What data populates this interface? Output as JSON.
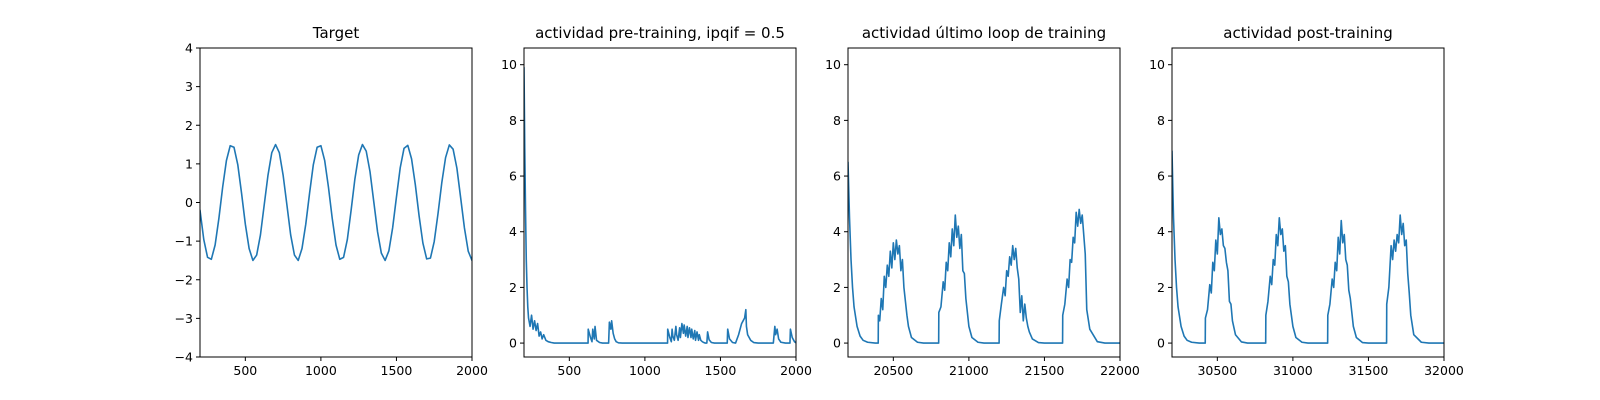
{
  "chart_data": [
    {
      "type": "line",
      "title": "Target",
      "xlabel": "",
      "ylabel": "",
      "xlim": [
        200,
        2000
      ],
      "ylim": [
        -4,
        4
      ],
      "xticks": [
        500,
        1000,
        1500,
        2000
      ],
      "yticks": [
        -4,
        -3,
        -2,
        -1,
        0,
        1,
        2,
        3,
        4
      ],
      "grid": false,
      "line_color": "#1f77b4",
      "series": [
        {
          "x": [
            200,
            225,
            250,
            275,
            300,
            325,
            350,
            375,
            400,
            425,
            450,
            475,
            500,
            525,
            550,
            575,
            600,
            625,
            650,
            675,
            700,
            725,
            750,
            775,
            800,
            825,
            850,
            875,
            900,
            925,
            950,
            975,
            1000,
            1025,
            1050,
            1075,
            1100,
            1125,
            1150,
            1175,
            1200,
            1225,
            1250,
            1275,
            1300,
            1325,
            1350,
            1375,
            1400,
            1425,
            1450,
            1475,
            1500,
            1525,
            1550,
            1575,
            1600,
            1625,
            1650,
            1675,
            1700,
            1725,
            1750,
            1775,
            1800,
            1825,
            1850,
            1875,
            1900,
            1925,
            1950,
            1975,
            2000
          ],
          "y": [
            -0.2,
            -0.96,
            -1.42,
            -1.47,
            -1.1,
            -0.41,
            0.4,
            1.09,
            1.47,
            1.43,
            0.98,
            0.24,
            -0.56,
            -1.19,
            -1.5,
            -1.36,
            -0.84,
            -0.06,
            0.71,
            1.29,
            1.5,
            1.29,
            0.71,
            -0.06,
            -0.84,
            -1.36,
            -1.5,
            -1.19,
            -0.56,
            0.24,
            0.98,
            1.43,
            1.47,
            1.09,
            0.4,
            -0.41,
            -1.1,
            -1.47,
            -1.42,
            -0.96,
            -0.2,
            0.61,
            1.23,
            1.5,
            1.33,
            0.8,
            0.02,
            -0.76,
            -1.31,
            -1.5,
            -1.25,
            -0.65,
            0.14,
            0.9,
            1.4,
            1.48,
            1.13,
            0.46,
            -0.35,
            -1.05,
            -1.46,
            -1.44,
            -1.01,
            -0.29,
            0.51,
            1.16,
            1.49,
            1.38,
            0.89,
            0.12,
            -0.66,
            -1.26,
            -1.5
          ]
        }
      ]
    },
    {
      "type": "line",
      "title": "actividad pre-training, ipqif = 0.5",
      "xlabel": "",
      "ylabel": "",
      "xlim": [
        200,
        2000
      ],
      "ylim": [
        -0.5,
        10.6
      ],
      "xticks": [
        500,
        1000,
        1500,
        2000
      ],
      "yticks": [
        0,
        2,
        4,
        6,
        8,
        10
      ],
      "grid": false,
      "line_color": "#1f77b4",
      "series": [
        {
          "x": [
            200,
            205,
            210,
            215,
            220,
            225,
            230,
            240,
            250,
            260,
            270,
            280,
            290,
            300,
            310,
            320,
            330,
            345,
            360,
            380,
            400,
            450,
            500,
            550,
            600,
            624,
            625,
            640,
            650,
            655,
            665,
            670,
            680,
            700,
            720,
            760,
            765,
            775,
            780,
            790,
            800,
            810,
            825,
            850,
            900,
            950,
            1000,
            1050,
            1100,
            1140,
            1150,
            1151,
            1165,
            1175,
            1180,
            1185,
            1195,
            1205,
            1210,
            1220,
            1230,
            1235,
            1245,
            1255,
            1260,
            1270,
            1280,
            1285,
            1295,
            1305,
            1310,
            1320,
            1330,
            1335,
            1345,
            1355,
            1360,
            1370,
            1380,
            1390,
            1400,
            1410,
            1415,
            1425,
            1440,
            1460,
            1480,
            1500,
            1520,
            1545,
            1548,
            1560,
            1580,
            1600,
            1620,
            1640,
            1650,
            1660,
            1668,
            1672,
            1680,
            1700,
            1720,
            1750,
            1780,
            1820,
            1850,
            1860,
            1865,
            1875,
            1885,
            1900,
            1930,
            1950,
            1960,
            1963,
            1975,
            1990,
            2000
          ],
          "y": [
            9.9,
            7.0,
            4.8,
            3.0,
            2.0,
            1.3,
            0.9,
            0.6,
            1.0,
            0.5,
            0.8,
            0.45,
            0.7,
            0.25,
            0.4,
            0.15,
            0.3,
            0.1,
            0.05,
            0.02,
            0.0,
            0.0,
            0.0,
            0.0,
            0.0,
            0.0,
            0.5,
            0.2,
            0.05,
            0.5,
            0.15,
            0.6,
            0.1,
            0.02,
            0.0,
            0.0,
            0.75,
            0.5,
            0.8,
            0.35,
            0.15,
            0.05,
            0.01,
            0.0,
            0.0,
            0.0,
            0.0,
            0.0,
            0.0,
            0.0,
            0.0,
            0.5,
            0.2,
            0.05,
            0.5,
            0.25,
            0.1,
            0.6,
            0.3,
            0.1,
            0.55,
            0.2,
            0.7,
            0.35,
            0.65,
            0.25,
            0.6,
            0.2,
            0.55,
            0.2,
            0.5,
            0.15,
            0.45,
            0.1,
            0.4,
            0.1,
            0.3,
            0.1,
            0.05,
            0.02,
            0.0,
            0.0,
            0.4,
            0.12,
            0.02,
            0.0,
            0.0,
            0.0,
            0.0,
            0.0,
            0.5,
            0.15,
            0.02,
            0.0,
            0.3,
            0.7,
            0.8,
            0.9,
            1.2,
            0.6,
            0.3,
            0.1,
            0.02,
            0.0,
            0.0,
            0.0,
            0.0,
            0.6,
            0.3,
            0.5,
            0.15,
            0.03,
            0.0,
            0.0,
            0.0,
            0.5,
            0.2,
            0.05,
            0.01
          ]
        }
      ]
    },
    {
      "type": "line",
      "title": "actividad último loop de training",
      "xlabel": "",
      "ylabel": "",
      "xlim": [
        20200,
        22000
      ],
      "ylim": [
        -0.5,
        10.6
      ],
      "xticks": [
        20500,
        21000,
        21500,
        22000
      ],
      "yticks": [
        0,
        2,
        4,
        6,
        8,
        10
      ],
      "grid": false,
      "line_color": "#1f77b4",
      "series": [
        {
          "x": [
            20200,
            20210,
            20220,
            20230,
            20240,
            20260,
            20280,
            20300,
            20330,
            20380,
            20400,
            20401,
            20410,
            20420,
            20430,
            20440,
            20450,
            20460,
            20470,
            20480,
            20490,
            20500,
            20510,
            20520,
            20530,
            20540,
            20550,
            20560,
            20570,
            20580,
            20590,
            20600,
            20620,
            20660,
            20700,
            20780,
            20800,
            20801,
            20815,
            20830,
            20840,
            20850,
            20860,
            20870,
            20880,
            20890,
            20900,
            20910,
            20920,
            20930,
            20940,
            20950,
            20960,
            20970,
            20980,
            20990,
            21000,
            21020,
            21060,
            21100,
            21180,
            21200,
            21201,
            21215,
            21230,
            21240,
            21250,
            21260,
            21270,
            21280,
            21290,
            21300,
            21310,
            21320,
            21330,
            21340,
            21350,
            21360,
            21370,
            21380,
            21390,
            21400,
            21420,
            21460,
            21500,
            21580,
            21620,
            21621,
            21635,
            21650,
            21660,
            21670,
            21680,
            21690,
            21700,
            21710,
            21720,
            21730,
            21740,
            21750,
            21760,
            21770,
            21780,
            21800,
            21850,
            21900,
            21950,
            22000
          ],
          "y": [
            6.5,
            4.5,
            3.0,
            2.0,
            1.3,
            0.6,
            0.25,
            0.1,
            0.03,
            0.0,
            0.0,
            1.0,
            0.8,
            1.6,
            1.2,
            2.4,
            2.0,
            2.8,
            2.4,
            3.3,
            2.7,
            3.6,
            3.0,
            3.7,
            3.2,
            3.5,
            2.6,
            3.0,
            2.0,
            1.5,
            1.0,
            0.6,
            0.2,
            0.03,
            0.0,
            0.0,
            0.0,
            1.1,
            1.3,
            2.2,
            1.9,
            2.9,
            2.6,
            3.6,
            3.1,
            4.1,
            3.5,
            4.6,
            3.8,
            4.2,
            3.4,
            3.9,
            2.6,
            2.5,
            1.6,
            1.1,
            0.6,
            0.2,
            0.03,
            0.0,
            0.0,
            0.0,
            0.8,
            1.4,
            2.0,
            1.7,
            2.6,
            2.4,
            3.1,
            2.8,
            3.5,
            3.0,
            3.4,
            2.7,
            2.3,
            1.1,
            1.7,
            0.8,
            1.4,
            0.9,
            0.6,
            0.4,
            0.15,
            0.02,
            0.0,
            0.0,
            0.0,
            1.0,
            1.4,
            2.3,
            2.0,
            3.0,
            2.9,
            3.8,
            3.6,
            4.7,
            4.2,
            4.8,
            4.3,
            4.6,
            3.9,
            3.2,
            1.2,
            0.5,
            0.05,
            0.0,
            0.0,
            0.0
          ]
        }
      ]
    },
    {
      "type": "line",
      "title": "actividad post-training",
      "xlabel": "",
      "ylabel": "",
      "xlim": [
        30200,
        32000
      ],
      "ylim": [
        -0.5,
        10.6
      ],
      "xticks": [
        30500,
        31000,
        31500,
        32000
      ],
      "yticks": [
        0,
        2,
        4,
        6,
        8,
        10
      ],
      "grid": false,
      "line_color": "#1f77b4",
      "series": [
        {
          "x": [
            30200,
            30210,
            30220,
            30230,
            30240,
            30260,
            30280,
            30300,
            30330,
            30380,
            30420,
            30421,
            30435,
            30450,
            30460,
            30470,
            30480,
            30490,
            30500,
            30510,
            30520,
            30530,
            30540,
            30550,
            30560,
            30570,
            30580,
            30590,
            30600,
            30620,
            30660,
            30700,
            30760,
            30820,
            30821,
            30835,
            30850,
            30860,
            30870,
            30880,
            30890,
            30900,
            30910,
            30920,
            30930,
            30940,
            30950,
            30960,
            30970,
            30980,
            30990,
            31000,
            31020,
            31060,
            31100,
            31180,
            31230,
            31231,
            31245,
            31260,
            31270,
            31280,
            31290,
            31300,
            31310,
            31320,
            31330,
            31340,
            31350,
            31360,
            31370,
            31380,
            31390,
            31400,
            31420,
            31460,
            31500,
            31580,
            31620,
            31621,
            31635,
            31650,
            31660,
            31670,
            31680,
            31690,
            31700,
            31710,
            31720,
            31730,
            31740,
            31750,
            31760,
            31770,
            31780,
            31800,
            31850,
            31900,
            31950,
            32000
          ],
          "y": [
            6.9,
            4.5,
            3.0,
            2.0,
            1.3,
            0.6,
            0.25,
            0.1,
            0.03,
            0.0,
            0.0,
            0.9,
            1.2,
            2.1,
            1.8,
            2.9,
            2.6,
            3.7,
            3.2,
            4.5,
            3.9,
            4.1,
            3.5,
            3.4,
            2.9,
            2.6,
            1.5,
            1.4,
            0.8,
            0.3,
            0.04,
            0.0,
            0.0,
            0.0,
            1.0,
            1.5,
            2.4,
            2.1,
            3.0,
            2.8,
            3.9,
            3.5,
            4.5,
            3.9,
            4.1,
            3.3,
            3.5,
            2.4,
            2.2,
            1.4,
            1.0,
            0.6,
            0.2,
            0.03,
            0.0,
            0.0,
            0.0,
            1.0,
            1.4,
            2.3,
            2.0,
            2.9,
            2.6,
            3.8,
            3.2,
            4.4,
            3.6,
            3.9,
            3.0,
            2.8,
            1.9,
            1.6,
            1.1,
            0.6,
            0.2,
            0.02,
            0.0,
            0.0,
            0.0,
            1.4,
            2.0,
            3.5,
            3.0,
            3.7,
            3.3,
            3.9,
            3.6,
            4.6,
            3.9,
            4.3,
            3.5,
            3.7,
            2.5,
            1.8,
            1.0,
            0.3,
            0.03,
            0.0,
            0.0,
            0.0
          ]
        }
      ]
    }
  ]
}
